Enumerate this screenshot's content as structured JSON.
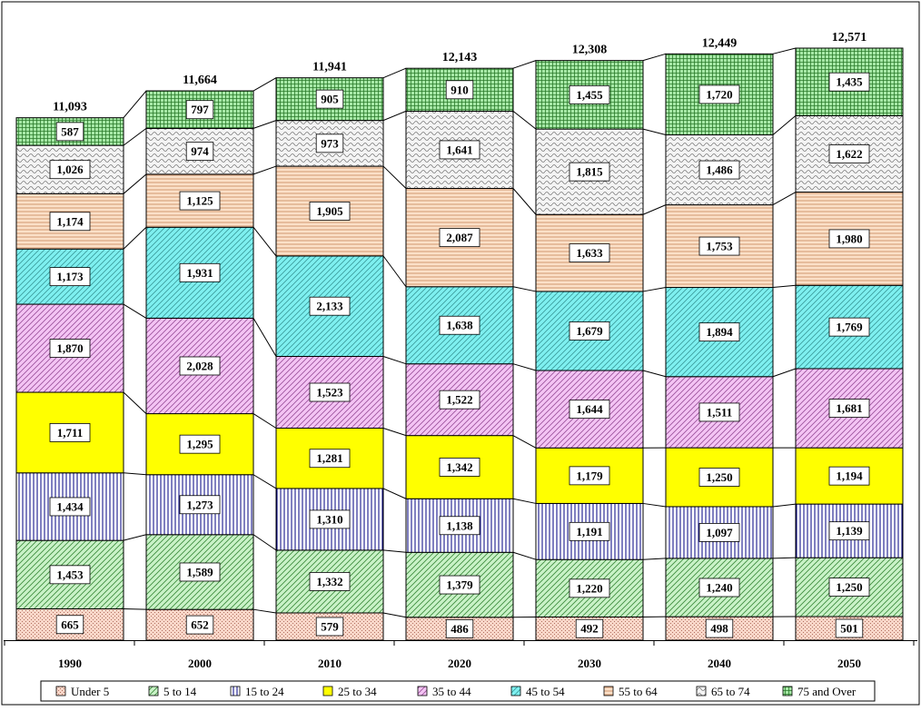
{
  "chart_data": {
    "type": "bar",
    "stacked": true,
    "title": "",
    "xlabel": "",
    "ylabel": "",
    "categories": [
      "1990",
      "2000",
      "2010",
      "2020",
      "2030",
      "2040",
      "2050"
    ],
    "totals": [
      "11,093",
      "11,664",
      "11,941",
      "12,143",
      "12,308",
      "12,449",
      "12,571"
    ],
    "ylim": [
      0,
      12571
    ],
    "grid": false,
    "legend_position": "bottom",
    "series": [
      {
        "name": "Under 5",
        "color": "#F9D7C9",
        "pattern": "dots",
        "values": [
          665,
          652,
          579,
          486,
          492,
          498,
          501
        ]
      },
      {
        "name": "5 to 14",
        "color": "#C9F2C7",
        "pattern": "diagonal",
        "values": [
          1453,
          1589,
          1332,
          1379,
          1220,
          1240,
          1250
        ]
      },
      {
        "name": "15 to 24",
        "color": "#FFFFFF",
        "pattern": "vertical",
        "values": [
          1434,
          1273,
          1310,
          1138,
          1191,
          1097,
          1139
        ]
      },
      {
        "name": "25 to 34",
        "color": "#FFFF00",
        "pattern": "solid",
        "values": [
          1711,
          1295,
          1281,
          1342,
          1179,
          1250,
          1194
        ]
      },
      {
        "name": "35 to 44",
        "color": "#F4C4F4",
        "pattern": "diagonal",
        "values": [
          1870,
          2028,
          1523,
          1522,
          1644,
          1511,
          1681
        ]
      },
      {
        "name": "45 to 54",
        "color": "#7EF0F0",
        "pattern": "diagonal",
        "values": [
          1173,
          1931,
          2133,
          1638,
          1679,
          1894,
          1769
        ]
      },
      {
        "name": "55 to 64",
        "color": "#FBE0C8",
        "pattern": "horizontal",
        "values": [
          1174,
          1125,
          1905,
          2087,
          1633,
          1753,
          1980
        ]
      },
      {
        "name": "65 to 74",
        "color": "#F4F4F4",
        "pattern": "wave",
        "values": [
          1026,
          974,
          973,
          1641,
          1815,
          1486,
          1622
        ]
      },
      {
        "name": "75 and Over",
        "color": "#A6E8A6",
        "pattern": "grid",
        "values": [
          587,
          797,
          905,
          910,
          1455,
          1720,
          1435
        ]
      }
    ]
  }
}
